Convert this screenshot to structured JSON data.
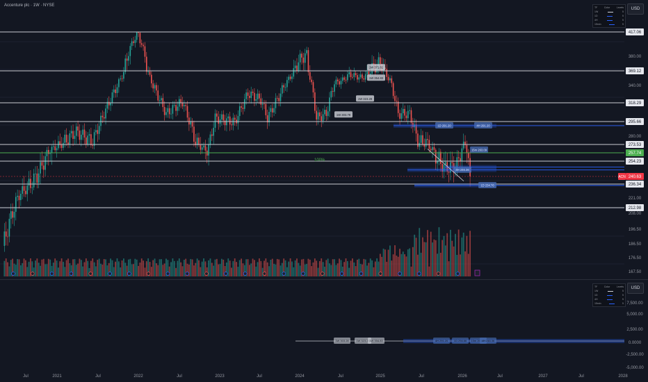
{
  "header": {
    "title": "Accenture plc · 1W · NYSE",
    "currency": "USD",
    "currency_bottom": "USD",
    "legend_header": [
      "TF",
      "Color",
      "Levels"
    ],
    "legend_rows": [
      {
        "tf": "1W",
        "levels": "5"
      },
      {
        "tf": "1D",
        "levels": "5"
      },
      {
        "tf": "4H",
        "levels": "5"
      },
      {
        "tf": "15min",
        "levels": "5"
      }
    ]
  },
  "colors": {
    "background": "#131722",
    "up": "#26a69a",
    "down": "#ef5350",
    "level_line": "#d1d4dc",
    "blue_zone": "#2962ff",
    "last_price": "#f23645",
    "green_label": "#4caf50"
  },
  "chart_data": {
    "type": "candlestick",
    "symbol": "ACN",
    "price_axis": {
      "ticks": [
        "380.00",
        "340.00",
        "280.00",
        "221.00",
        "208.00",
        "196.50",
        "186.50",
        "176.50",
        "167.50"
      ]
    },
    "levels": [
      {
        "price": "417.06",
        "kind": "white"
      },
      {
        "price": "369.12",
        "kind": "white"
      },
      {
        "price": "318.29",
        "kind": "white"
      },
      {
        "price": "295.66",
        "kind": "white"
      },
      {
        "price": "273.53",
        "kind": "white"
      },
      {
        "price": "257.74",
        "kind": "green"
      },
      {
        "price": "254.23",
        "kind": "white"
      },
      {
        "price": "240.63",
        "kind": "last",
        "tag": "ACN"
      },
      {
        "price": "236.34",
        "kind": "white"
      },
      {
        "price": "212.98",
        "kind": "white"
      }
    ],
    "annotations": [
      "1W 371.61",
      "1W 354.83",
      "1W 323.28",
      "1W 303.79",
      "1D 291.20",
      "4H 291.20",
      "15m 263.09",
      "4H 246.36",
      "1D 234.76",
      "100%"
    ],
    "time_axis": [
      "Jul",
      "2021",
      "Jul",
      "2022",
      "Jul",
      "2023",
      "Jul",
      "2024",
      "Jul",
      "2025",
      "Jul",
      "2026",
      "Jul",
      "2027",
      "Jul",
      "2028"
    ],
    "sub_axis": [
      "7,500.00",
      "5,000.00",
      "2,500.00",
      "0.0000",
      "-2,500.00",
      "-5,000.00"
    ],
    "sub_annotations": [
      "1W 303.28",
      "1W 323.28",
      "1W 354.83",
      "4H 291.20",
      "1D 294.66",
      "15m 263.09",
      "4H 246.36"
    ]
  }
}
